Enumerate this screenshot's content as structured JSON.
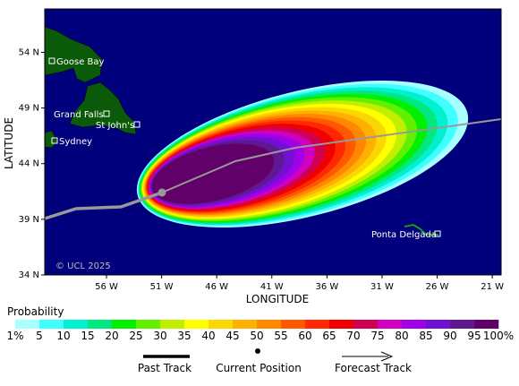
{
  "map": {
    "copyright": "© UCL 2025",
    "lat_axis_label": "LATITUDE",
    "lon_axis_label": "LONGITUDE",
    "lat_range": [
      34,
      57.9
    ],
    "lon_range": [
      -61.6,
      -20.2
    ],
    "lat_ticks": [
      {
        "value": 54,
        "label": "54 N"
      },
      {
        "value": 49,
        "label": "49 N"
      },
      {
        "value": 44,
        "label": "44 N"
      },
      {
        "value": 39,
        "label": "39 N"
      },
      {
        "value": 34,
        "label": "34 N"
      }
    ],
    "lon_ticks": [
      {
        "value": -56,
        "label": "56 W"
      },
      {
        "value": -51,
        "label": "51 W"
      },
      {
        "value": -46,
        "label": "46 W"
      },
      {
        "value": -41,
        "label": "41 W"
      },
      {
        "value": -36,
        "label": "36 W"
      },
      {
        "value": -31,
        "label": "31 W"
      },
      {
        "value": -26,
        "label": "26 W"
      },
      {
        "value": -21,
        "label": "21 W"
      }
    ],
    "places": [
      "Goose Bay",
      "Grand Falls",
      "St John's",
      "Sydney",
      "Ponta Delgada"
    ]
  },
  "colorbar": {
    "title": "Probability",
    "labels": [
      "1%",
      "5",
      "10",
      "15",
      "20",
      "25",
      "30",
      "35",
      "40",
      "45",
      "50",
      "55",
      "60",
      "65",
      "70",
      "75",
      "80",
      "85",
      "90",
      "95",
      "100%"
    ],
    "colors": [
      "#a8ffff",
      "#40ffff",
      "#00f0d0",
      "#00e880",
      "#00f000",
      "#60f000",
      "#c0f000",
      "#ffff00",
      "#f8d800",
      "#ffb000",
      "#ff8800",
      "#ff5800",
      "#ff2800",
      "#f00000",
      "#d00050",
      "#d000c0",
      "#a000e8",
      "#7010d0",
      "#601890",
      "#600068"
    ]
  },
  "legend": {
    "past": "Past Track",
    "current": "Current Position",
    "forecast": "Forecast Track"
  }
}
